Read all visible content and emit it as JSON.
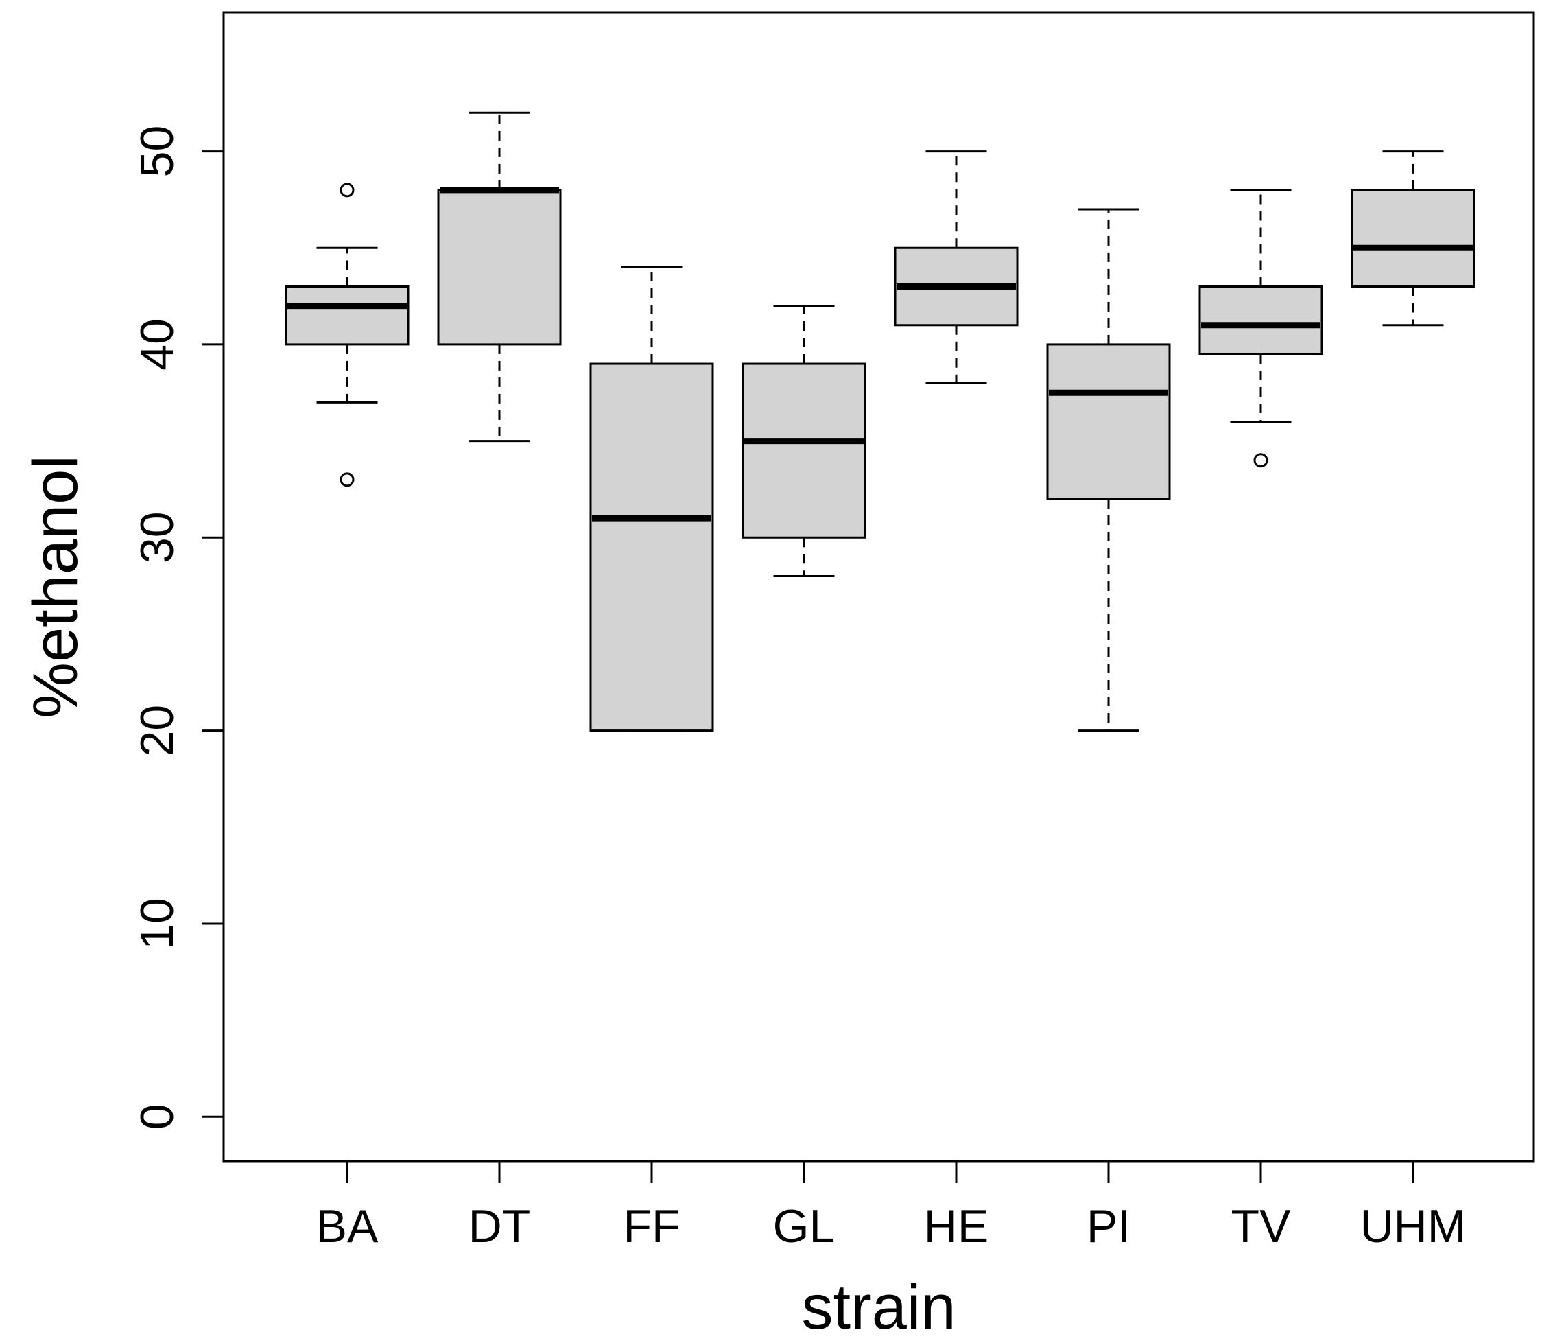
{
  "chart_data": {
    "type": "boxplot",
    "title": "",
    "xlabel": "strain",
    "ylabel": "%ethanol",
    "ylim": [
      -2.3,
      57.2
    ],
    "y_ticks": [
      "0",
      "10",
      "20",
      "30",
      "40",
      "50"
    ],
    "grid": false,
    "categories": [
      "BA",
      "DT",
      "FF",
      "GL",
      "HE",
      "PI",
      "TV",
      "UHM"
    ],
    "boxes": [
      {
        "name": "BA",
        "whisker_low": 37,
        "q1": 40,
        "median": 42,
        "q3": 43,
        "whisker_high": 45,
        "outliers": [
          33,
          48
        ]
      },
      {
        "name": "DT",
        "whisker_low": 35,
        "q1": 40,
        "median": 48,
        "q3": 48,
        "whisker_high": 52,
        "outliers": []
      },
      {
        "name": "FF",
        "whisker_low": 20,
        "q1": 20,
        "median": 31,
        "q3": 39,
        "whisker_high": 44,
        "outliers": []
      },
      {
        "name": "GL",
        "whisker_low": 28,
        "q1": 30,
        "median": 35,
        "q3": 39,
        "whisker_high": 42,
        "outliers": []
      },
      {
        "name": "HE",
        "whisker_low": 38,
        "q1": 41,
        "median": 43,
        "q3": 45,
        "whisker_high": 50,
        "outliers": []
      },
      {
        "name": "PI",
        "whisker_low": 20,
        "q1": 32,
        "median": 37.5,
        "q3": 40,
        "whisker_high": 47,
        "outliers": []
      },
      {
        "name": "TV",
        "whisker_low": 36,
        "q1": 39.5,
        "median": 41,
        "q3": 43,
        "whisker_high": 48,
        "outliers": [
          34
        ]
      },
      {
        "name": "UHM",
        "whisker_low": 41,
        "q1": 43,
        "median": 45,
        "q3": 48,
        "whisker_high": 50,
        "outliers": []
      }
    ],
    "colors": {
      "box_fill": "#d3d3d3",
      "stroke": "#000000",
      "background": "#ffffff"
    }
  }
}
